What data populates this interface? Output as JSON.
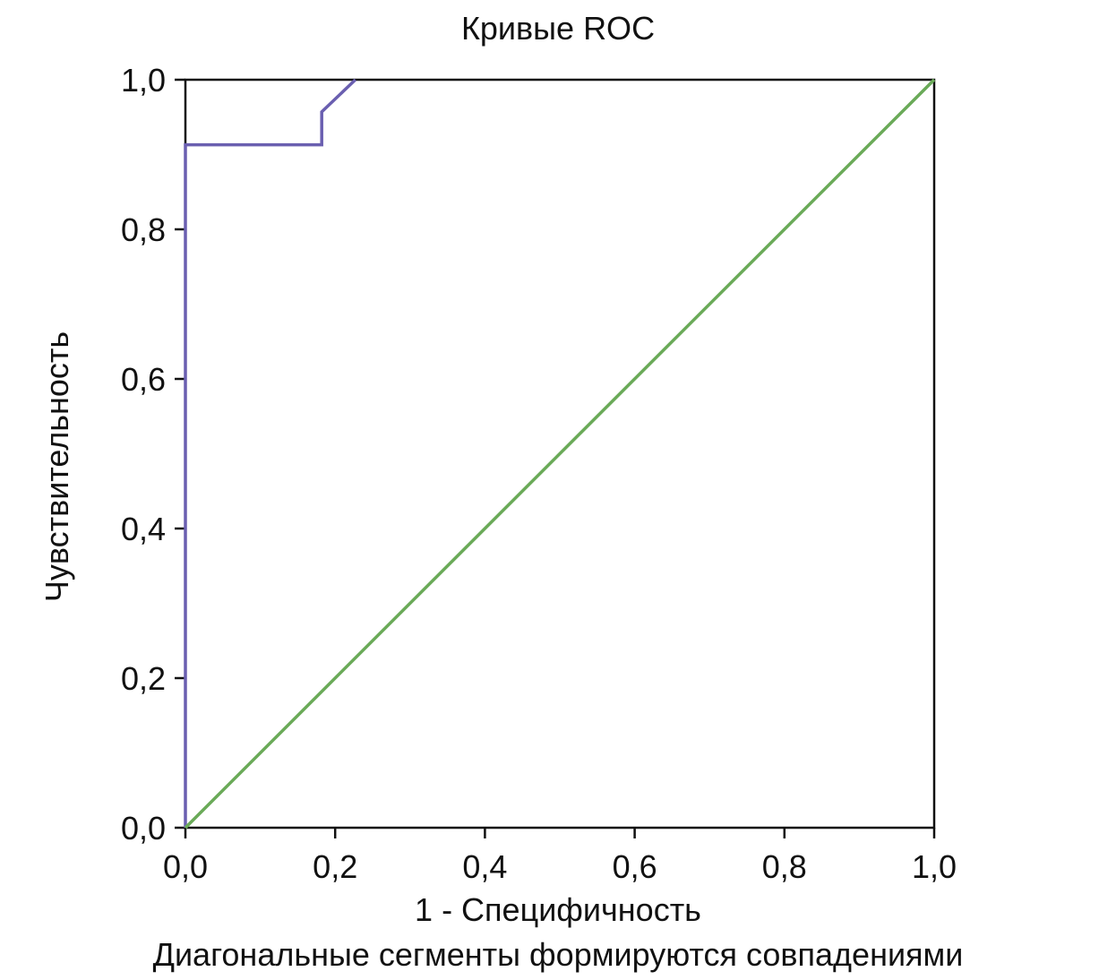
{
  "chart_data": {
    "type": "line",
    "title": "Кривые ROC",
    "xlabel": "1 - Специфичность",
    "ylabel": "Чувствительность",
    "footnote": "Диагональные сегменты формируются совпадениями",
    "xlim": [
      0,
      1
    ],
    "ylim": [
      0,
      1
    ],
    "x_ticks": [
      "0,0",
      "0,2",
      "0,4",
      "0,6",
      "0,8",
      "1,0"
    ],
    "y_ticks": [
      "0,0",
      "0,2",
      "0,4",
      "0,6",
      "0,8",
      "1,0"
    ],
    "grid": false,
    "series": [
      {
        "color": "#6a5fb0",
        "x": [
          0.0,
          0.0,
          0.182,
          0.182,
          0.227
        ],
        "y": [
          0.0,
          0.913,
          0.913,
          0.957,
          1.0
        ]
      },
      {
        "color": "#6aaa58",
        "x": [
          0.0,
          1.0
        ],
        "y": [
          0.0,
          1.0
        ]
      }
    ]
  }
}
